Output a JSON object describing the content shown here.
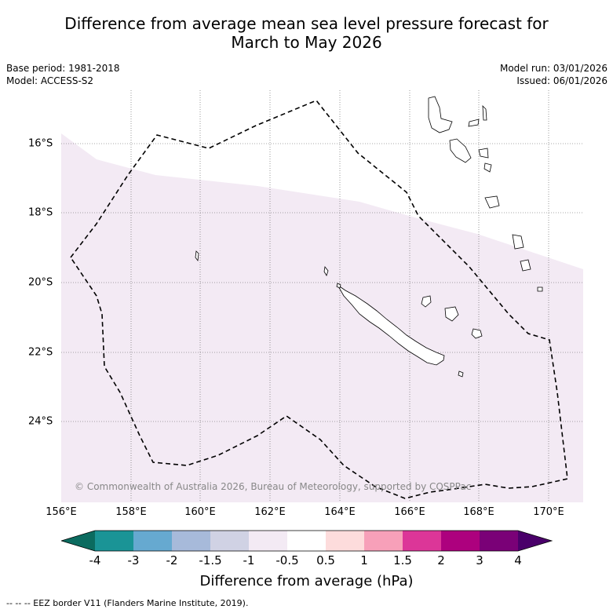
{
  "title_line1": "Difference from average mean sea level pressure forecast for",
  "title_line2": "March to May 2026",
  "base_period": "Base period: 1981-2018",
  "model": "Model: ACCESS-S2",
  "model_run": "Model run: 03/01/2026",
  "issued": "Issued: 06/01/2026",
  "copyright": "© Commonwealth of Australia 2026, Bureau of Meteorology, supported by COSPPac",
  "lon_labels": [
    "156°E",
    "158°E",
    "160°E",
    "162°E",
    "164°E",
    "166°E",
    "168°E",
    "170°E"
  ],
  "lat_labels": [
    "16°S",
    "18°S",
    "20°S",
    "22°S",
    "24°S"
  ],
  "colorbar": {
    "title": "Difference from average (hPa)",
    "tick_labels": [
      "-4",
      "-3",
      "-2",
      "-1.5",
      "-1",
      "-0.5",
      "0.5",
      "1",
      "1.5",
      "2",
      "3",
      "4"
    ],
    "colors": {
      "below_-4": "#0b6b5f",
      "-4_-3": "#1a9496",
      "-3_-2": "#66a9d0",
      "-2_-1.5": "#a7bada",
      "-1.5_-1": "#d0d2e4",
      "-1_-0.5": "#f3eaf4",
      "-0.5_0.5": "#ffffff",
      "0.5_1": "#fddcdc",
      "1_1.5": "#f7a0b9",
      "1.5_2": "#dc3698",
      "2_3": "#ad017e",
      "3_4": "#7a0177",
      "above_4": "#4a006a"
    }
  },
  "legend": "--  --  -- EEZ border V11 (Flanders Marine Institute, 2019).",
  "map_data": {
    "lon_range": [
      156,
      171
    ],
    "lat_range": [
      -26.2,
      -14.4
    ],
    "shaded_region_value": "-1_-0.5"
  }
}
